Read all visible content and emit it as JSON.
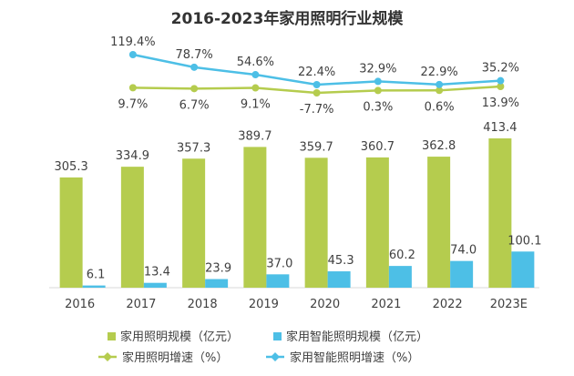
{
  "chart_data": {
    "type": "bar",
    "title": "2016-2023年家用照明行业规模",
    "categories": [
      "2016",
      "2017",
      "2018",
      "2019",
      "2020",
      "2021",
      "2022",
      "2023E"
    ],
    "bar_series": [
      {
        "name": "家用照明规模（亿元）",
        "color": "#b5cc4e",
        "values": [
          305.3,
          334.9,
          357.3,
          389.7,
          359.7,
          360.7,
          362.8,
          413.4
        ]
      },
      {
        "name": "家用智能照明规模（亿元）",
        "color": "#4dbfe6",
        "values": [
          6.1,
          13.4,
          23.9,
          37.0,
          45.3,
          60.2,
          74.0,
          100.1
        ]
      }
    ],
    "line_series": [
      {
        "name": "家用照明增速（%）",
        "color": "#b5cc4e",
        "values": [
          9.7,
          6.7,
          9.1,
          -7.7,
          0.3,
          0.6,
          13.9
        ],
        "categories": [
          "2017",
          "2018",
          "2019",
          "2020",
          "2021",
          "2022",
          "2023E"
        ],
        "labels": [
          "9.7%",
          "6.7%",
          "9.1%",
          "-7.7%",
          "0.3%",
          "0.6%",
          "13.9%"
        ]
      },
      {
        "name": "家用智能照明增速（%）",
        "color": "#4dbfe6",
        "values": [
          119.4,
          78.7,
          54.6,
          22.4,
          32.9,
          22.9,
          35.2
        ],
        "categories": [
          "2017",
          "2018",
          "2019",
          "2020",
          "2021",
          "2022",
          "2023E"
        ],
        "labels": [
          "119.4%",
          "78.7%",
          "54.6%",
          "22.4%",
          "32.9%",
          "22.9%",
          "35.2%"
        ]
      }
    ],
    "bar_labels": [
      [
        "305.3",
        "334.9",
        "357.3",
        "389.7",
        "359.7",
        "360.7",
        "362.8",
        "413.4"
      ],
      [
        "6.1",
        "13.4",
        "23.9",
        "37.0",
        "45.3",
        "60.2",
        "74.0",
        "100.1"
      ]
    ],
    "ylim_bars": [
      0,
      500
    ],
    "ylim_lines": [
      -20,
      140
    ],
    "grid": false,
    "legend_position": "bottom"
  },
  "colors": {
    "axis": "#d9d9d9",
    "text": "#404040"
  }
}
